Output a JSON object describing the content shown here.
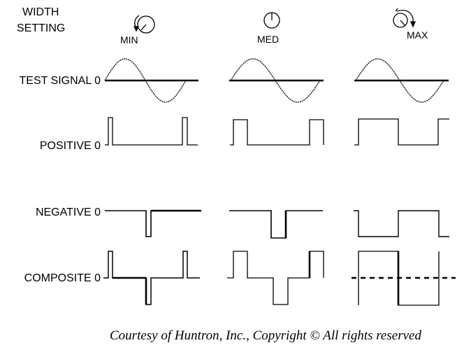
{
  "header": {
    "width_setting_line1": "WIDTH",
    "width_setting_line2": "SETTING"
  },
  "columns": [
    {
      "knob_label": "MIN"
    },
    {
      "knob_label": "MED"
    },
    {
      "knob_label": "MAX"
    }
  ],
  "rows": [
    {
      "label": "TEST SIGNAL 0"
    },
    {
      "label": "POSITIVE 0"
    },
    {
      "label": "NEGATIVE 0"
    },
    {
      "label": "COMPOSITE 0"
    }
  ],
  "credit": "Courtesy of Huntron, Inc., Copyright ©  All rights reserved"
}
